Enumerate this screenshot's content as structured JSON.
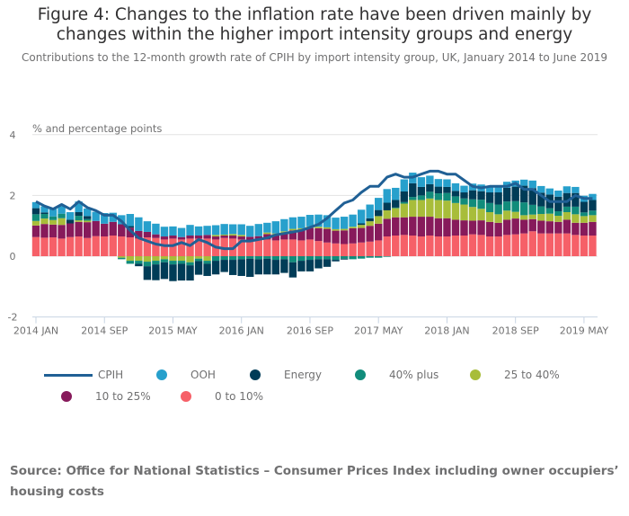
{
  "figure": {
    "title": "Figure 4: Changes to the inflation rate have been driven mainly by changes within the higher import intensity groups and energy",
    "subtitle": "Contributions to the 12-month growth rate of CPIH by import intensity group, UK, January 2014 to June 2019",
    "source": "Source: Office for National Statistics – Consumer Prices Index including owner occupiers’ housing costs"
  },
  "chart_data": {
    "type": "bar",
    "stacked": true,
    "title": "Figure 4: Changes to the inflation rate have been driven mainly by changes within the higher import intensity groups and energy",
    "subtitle": "Contributions to the 12-month growth rate of CPIH by import intensity group, UK, January 2014 to June 2019",
    "ylabel": "% and percentage points",
    "xlabel": "",
    "ylim": [
      -2,
      4
    ],
    "yticks": [
      -2,
      0,
      2,
      4
    ],
    "grid": true,
    "legend_position": "bottom",
    "x_start": "2014-01",
    "n_months": 66,
    "xtick_labels": [
      "2014 JAN",
      "2014 SEP",
      "2015 MAY",
      "2016 JAN",
      "2016 SEP",
      "2017 MAY",
      "2018 JAN",
      "2018 SEP",
      "2019 MAY"
    ],
    "xtick_indices": [
      0,
      8,
      16,
      24,
      32,
      40,
      48,
      56,
      64
    ],
    "stack_order": [
      "0 to 10%",
      "10 to 25%",
      "25 to 40%",
      "40% plus",
      "Energy",
      "OOH"
    ],
    "series": [
      {
        "name": "0 to 10%",
        "color": "#f66068",
        "values": [
          0.63,
          0.61,
          0.62,
          0.58,
          0.63,
          0.65,
          0.6,
          0.66,
          0.65,
          0.68,
          0.65,
          0.62,
          0.58,
          0.62,
          0.6,
          0.55,
          0.58,
          0.55,
          0.58,
          0.58,
          0.58,
          0.55,
          0.6,
          0.58,
          0.55,
          0.52,
          0.56,
          0.55,
          0.52,
          0.55,
          0.55,
          0.52,
          0.55,
          0.5,
          0.45,
          0.42,
          0.4,
          0.42,
          0.45,
          0.48,
          0.52,
          0.65,
          0.68,
          0.7,
          0.68,
          0.65,
          0.68,
          0.65,
          0.65,
          0.68,
          0.68,
          0.72,
          0.7,
          0.65,
          0.65,
          0.7,
          0.72,
          0.75,
          0.82,
          0.75,
          0.75,
          0.75,
          0.75,
          0.7,
          0.68,
          0.68
        ]
      },
      {
        "name": "10 to 25%",
        "color": "#871a5b",
        "values": [
          0.38,
          0.45,
          0.42,
          0.45,
          0.45,
          0.48,
          0.52,
          0.5,
          0.42,
          0.45,
          0.4,
          0.32,
          0.25,
          0.18,
          0.12,
          0.1,
          0.1,
          0.08,
          0.1,
          0.1,
          0.12,
          0.1,
          0.08,
          0.1,
          0.1,
          0.12,
          0.1,
          0.18,
          0.2,
          0.22,
          0.3,
          0.35,
          0.38,
          0.42,
          0.45,
          0.42,
          0.45,
          0.5,
          0.48,
          0.52,
          0.55,
          0.58,
          0.6,
          0.58,
          0.62,
          0.65,
          0.62,
          0.6,
          0.6,
          0.52,
          0.5,
          0.45,
          0.48,
          0.48,
          0.45,
          0.5,
          0.52,
          0.45,
          0.4,
          0.42,
          0.4,
          0.38,
          0.45,
          0.4,
          0.42,
          0.45
        ]
      },
      {
        "name": "25 to 40%",
        "color": "#a8bd3a",
        "values": [
          0.15,
          0.18,
          0.15,
          0.22,
          0.0,
          0.05,
          0.05,
          0.0,
          0.0,
          0.0,
          -0.05,
          -0.15,
          -0.15,
          -0.18,
          -0.15,
          -0.1,
          -0.15,
          -0.15,
          -0.2,
          -0.08,
          -0.15,
          0.05,
          0.03,
          0.05,
          0.05,
          0.0,
          0.0,
          0.05,
          0.03,
          0.05,
          0.05,
          0.05,
          0.05,
          0.05,
          0.05,
          0.05,
          0.05,
          0.05,
          0.1,
          0.15,
          0.25,
          0.28,
          0.3,
          0.45,
          0.55,
          0.55,
          0.6,
          0.6,
          0.58,
          0.55,
          0.52,
          0.45,
          0.38,
          0.32,
          0.28,
          0.3,
          0.22,
          0.15,
          0.15,
          0.22,
          0.25,
          0.2,
          0.25,
          0.28,
          0.22,
          0.22
        ]
      },
      {
        "name": "40% plus",
        "color": "#118c7b",
        "values": [
          0.22,
          0.15,
          0.12,
          0.15,
          0.0,
          0.15,
          0.05,
          0.0,
          0.0,
          0.0,
          -0.05,
          -0.1,
          -0.1,
          -0.15,
          -0.12,
          -0.1,
          -0.12,
          -0.1,
          -0.1,
          -0.08,
          -0.1,
          -0.15,
          -0.12,
          -0.12,
          -0.1,
          -0.08,
          -0.1,
          -0.08,
          -0.12,
          -0.1,
          -0.2,
          -0.15,
          -0.12,
          -0.1,
          -0.1,
          -0.12,
          -0.08,
          -0.1,
          -0.08,
          -0.05,
          -0.05,
          -0.02,
          0.02,
          0.05,
          0.1,
          0.15,
          0.22,
          0.22,
          0.25,
          0.22,
          0.2,
          0.25,
          0.3,
          0.3,
          0.32,
          0.3,
          0.35,
          0.42,
          0.32,
          0.25,
          0.18,
          0.15,
          0.18,
          0.25,
          0.12,
          0.15
        ]
      },
      {
        "name": "Energy",
        "color": "#003c57",
        "values": [
          0.2,
          0.05,
          0.0,
          0.0,
          0.12,
          0.12,
          0.1,
          0.0,
          0.0,
          0.0,
          0.0,
          0.05,
          -0.08,
          -0.45,
          -0.52,
          -0.55,
          -0.55,
          -0.55,
          -0.5,
          -0.45,
          -0.4,
          -0.45,
          -0.4,
          -0.5,
          -0.55,
          -0.6,
          -0.5,
          -0.52,
          -0.48,
          -0.45,
          -0.5,
          -0.35,
          -0.38,
          -0.3,
          -0.25,
          -0.05,
          -0.03,
          0.0,
          0.05,
          0.1,
          0.2,
          0.25,
          0.25,
          0.35,
          0.45,
          0.28,
          0.25,
          0.22,
          0.2,
          0.18,
          0.2,
          0.3,
          0.28,
          0.35,
          0.4,
          0.45,
          0.48,
          0.55,
          0.55,
          0.45,
          0.45,
          0.48,
          0.45,
          0.45,
          0.35,
          0.35
        ]
      },
      {
        "name": "OOH",
        "color": "#27a0cc",
        "values": [
          0.2,
          0.2,
          0.25,
          0.25,
          0.25,
          0.35,
          0.25,
          0.3,
          0.35,
          0.3,
          0.3,
          0.4,
          0.45,
          0.35,
          0.35,
          0.32,
          0.3,
          0.3,
          0.35,
          0.3,
          0.3,
          0.32,
          0.35,
          0.32,
          0.35,
          0.36,
          0.4,
          0.32,
          0.4,
          0.4,
          0.38,
          0.38,
          0.38,
          0.4,
          0.4,
          0.38,
          0.4,
          0.4,
          0.45,
          0.45,
          0.4,
          0.45,
          0.4,
          0.4,
          0.35,
          0.32,
          0.28,
          0.25,
          0.25,
          0.25,
          0.22,
          0.22,
          0.22,
          0.22,
          0.2,
          0.2,
          0.2,
          0.2,
          0.25,
          0.22,
          0.2,
          0.2,
          0.22,
          0.2,
          0.2,
          0.2
        ]
      },
      {
        "name": "CPIH",
        "color": "#206095",
        "type": "line",
        "values": [
          1.8,
          1.65,
          1.55,
          1.7,
          1.55,
          1.8,
          1.6,
          1.5,
          1.35,
          1.35,
          1.15,
          0.85,
          0.6,
          0.5,
          0.4,
          0.35,
          0.35,
          0.45,
          0.35,
          0.55,
          0.45,
          0.3,
          0.25,
          0.25,
          0.5,
          0.5,
          0.55,
          0.6,
          0.7,
          0.75,
          0.8,
          0.85,
          0.95,
          1.05,
          1.25,
          1.5,
          1.75,
          1.85,
          2.1,
          2.3,
          2.3,
          2.6,
          2.7,
          2.6,
          2.6,
          2.7,
          2.8,
          2.8,
          2.7,
          2.7,
          2.5,
          2.3,
          2.25,
          2.3,
          2.3,
          2.3,
          2.4,
          2.2,
          2.2,
          2.0,
          1.8,
          1.8,
          1.8,
          2.0,
          1.9,
          1.9
        ]
      }
    ]
  },
  "legend": {
    "items": [
      {
        "label": "CPIH",
        "color": "#206095",
        "kind": "line"
      },
      {
        "label": "OOH",
        "color": "#27a0cc",
        "kind": "dot"
      },
      {
        "label": "Energy",
        "color": "#003c57",
        "kind": "dot"
      },
      {
        "label": "40% plus",
        "color": "#118c7b",
        "kind": "dot"
      },
      {
        "label": "25 to 40%",
        "color": "#a8bd3a",
        "kind": "dot"
      },
      {
        "label": "10 to 25%",
        "color": "#871a5b",
        "kind": "dot"
      },
      {
        "label": "0 to 10%",
        "color": "#f66068",
        "kind": "dot"
      }
    ]
  }
}
